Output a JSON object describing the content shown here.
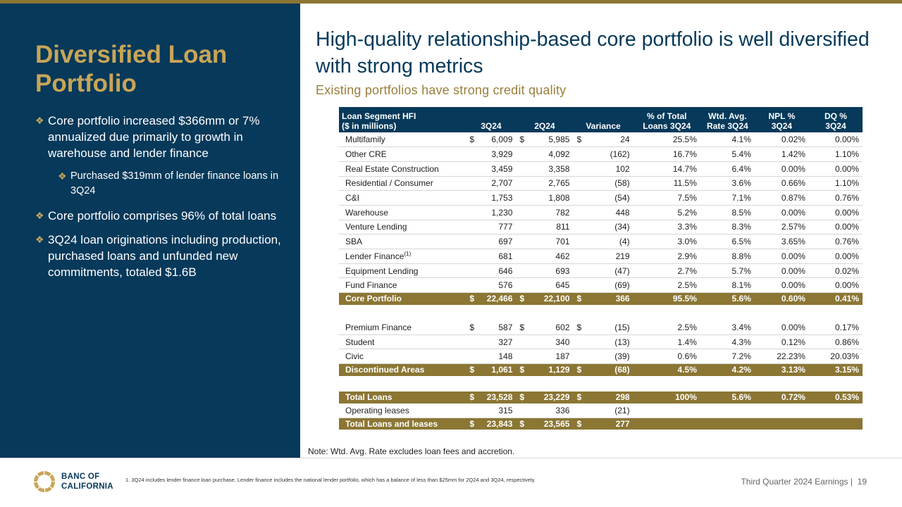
{
  "sidebar": {
    "title": "Diversified Loan Portfolio",
    "bullets": [
      "Core portfolio increased $366mm or 7% annualized due primarily to growth in warehouse and lender finance",
      "Core portfolio comprises 96% of total loans",
      "3Q24 loan originations including production, purchased loans and unfunded new commitments, totaled $1.6B"
    ],
    "sub_bullet": "Purchased $319mm of lender finance loans in 3Q24"
  },
  "header": {
    "title": "High-quality relationship-based core portfolio is well diversified with strong metrics",
    "subtitle": "Existing portfolios have strong credit quality"
  },
  "table": {
    "headers": {
      "segment_line1": "Loan Segment HFI",
      "segment_line2": "($ in millions)",
      "q3": "3Q24",
      "q2": "2Q24",
      "variance": "Variance",
      "pct_line1": "% of Total",
      "pct_line2": "Loans 3Q24",
      "rate_line1": "Wtd. Avg.",
      "rate_line2": "Rate 3Q24",
      "npl_line1": "NPL %",
      "npl_line2": "3Q24",
      "dq_line1": "DQ %",
      "dq_line2": "3Q24"
    },
    "currency": "$",
    "rows": [
      {
        "name": "Multifamily",
        "q3": "6,009",
        "q2": "5,985",
        "var": "24",
        "pct": "25.5%",
        "rate": "4.1%",
        "npl": "0.02%",
        "dq": "0.00%"
      },
      {
        "name": "Other CRE",
        "q3": "3,929",
        "q2": "4,092",
        "var": "(162)",
        "pct": "16.7%",
        "rate": "5.4%",
        "npl": "1.42%",
        "dq": "1.10%"
      },
      {
        "name": "Real Estate Construction",
        "q3": "3,459",
        "q2": "3,358",
        "var": "102",
        "pct": "14.7%",
        "rate": "6.4%",
        "npl": "0.00%",
        "dq": "0.00%"
      },
      {
        "name": "Residential / Consumer",
        "q3": "2,707",
        "q2": "2,765",
        "var": "(58)",
        "pct": "11.5%",
        "rate": "3.6%",
        "npl": "0.66%",
        "dq": "1.10%"
      },
      {
        "name": "C&I",
        "q3": "1,753",
        "q2": "1,808",
        "var": "(54)",
        "pct": "7.5%",
        "rate": "7.1%",
        "npl": "0.87%",
        "dq": "0.76%"
      },
      {
        "name": "Warehouse",
        "q3": "1,230",
        "q2": "782",
        "var": "448",
        "pct": "5.2%",
        "rate": "8.5%",
        "npl": "0.00%",
        "dq": "0.00%"
      },
      {
        "name": "Venture Lending",
        "q3": "777",
        "q2": "811",
        "var": "(34)",
        "pct": "3.3%",
        "rate": "8.3%",
        "npl": "2.57%",
        "dq": "0.00%"
      },
      {
        "name": "SBA",
        "q3": "697",
        "q2": "701",
        "var": "(4)",
        "pct": "3.0%",
        "rate": "6.5%",
        "npl": "3.65%",
        "dq": "0.76%"
      },
      {
        "name": "Lender Finance",
        "footnote_mark": "(1)",
        "q3": "681",
        "q2": "462",
        "var": "219",
        "pct": "2.9%",
        "rate": "8.8%",
        "npl": "0.00%",
        "dq": "0.00%"
      },
      {
        "name": "Equipment Lending",
        "q3": "646",
        "q2": "693",
        "var": "(47)",
        "pct": "2.7%",
        "rate": "5.7%",
        "npl": "0.00%",
        "dq": "0.02%"
      },
      {
        "name": "Fund Finance",
        "q3": "576",
        "q2": "645",
        "var": "(69)",
        "pct": "2.5%",
        "rate": "8.1%",
        "npl": "0.00%",
        "dq": "0.00%"
      }
    ],
    "core_total": {
      "name": "Core Portfolio",
      "q3": "22,466",
      "q2": "22,100",
      "var": "366",
      "pct": "95.5%",
      "rate": "5.6%",
      "npl": "0.60%",
      "dq": "0.41%"
    },
    "discontinued_rows": [
      {
        "name": "Premium Finance",
        "q3": "587",
        "q2": "602",
        "var": "(15)",
        "pct": "2.5%",
        "rate": "3.4%",
        "npl": "0.00%",
        "dq": "0.17%"
      },
      {
        "name": "Student",
        "q3": "327",
        "q2": "340",
        "var": "(13)",
        "pct": "1.4%",
        "rate": "4.3%",
        "npl": "0.12%",
        "dq": "0.86%"
      },
      {
        "name": "Civic",
        "q3": "148",
        "q2": "187",
        "var": "(39)",
        "pct": "0.6%",
        "rate": "7.2%",
        "npl": "22.23%",
        "dq": "20.03%"
      }
    ],
    "discontinued_total": {
      "name": "Discontinued Areas",
      "q3": "1,061",
      "q2": "1,129",
      "var": "(68)",
      "pct": "4.5%",
      "rate": "4.2%",
      "npl": "3.13%",
      "dq": "3.15%"
    },
    "total_loans": {
      "name": "Total Loans",
      "q3": "23,528",
      "q2": "23,229",
      "var": "298",
      "pct": "100%",
      "rate": "5.6%",
      "npl": "0.72%",
      "dq": "0.53%"
    },
    "operating_leases": {
      "name": "Operating leases",
      "q3": "315",
      "q2": "336",
      "var": "(21)"
    },
    "total_loans_leases": {
      "name": "Total Loans and leases",
      "q3": "23,843",
      "q2": "23,565",
      "var": "277"
    }
  },
  "note": "Note: Wtd. Avg. Rate excludes loan fees and accretion.",
  "footer": {
    "logo_line1": "BANC OF",
    "logo_line2": "CALIFORNIA",
    "footnote": "1.  3Q24 includes lender finance loan purchase. Lender finance includes the national lender portfolio, which has a balance of less than $25mm for 2Q24 and 3Q24, respectively.",
    "page_label": "Third Quarter 2024 Earnings |",
    "page_number": "19"
  },
  "colors": {
    "navy": "#06395a",
    "gold": "#8b7634",
    "gold_light": "#c9a557"
  }
}
